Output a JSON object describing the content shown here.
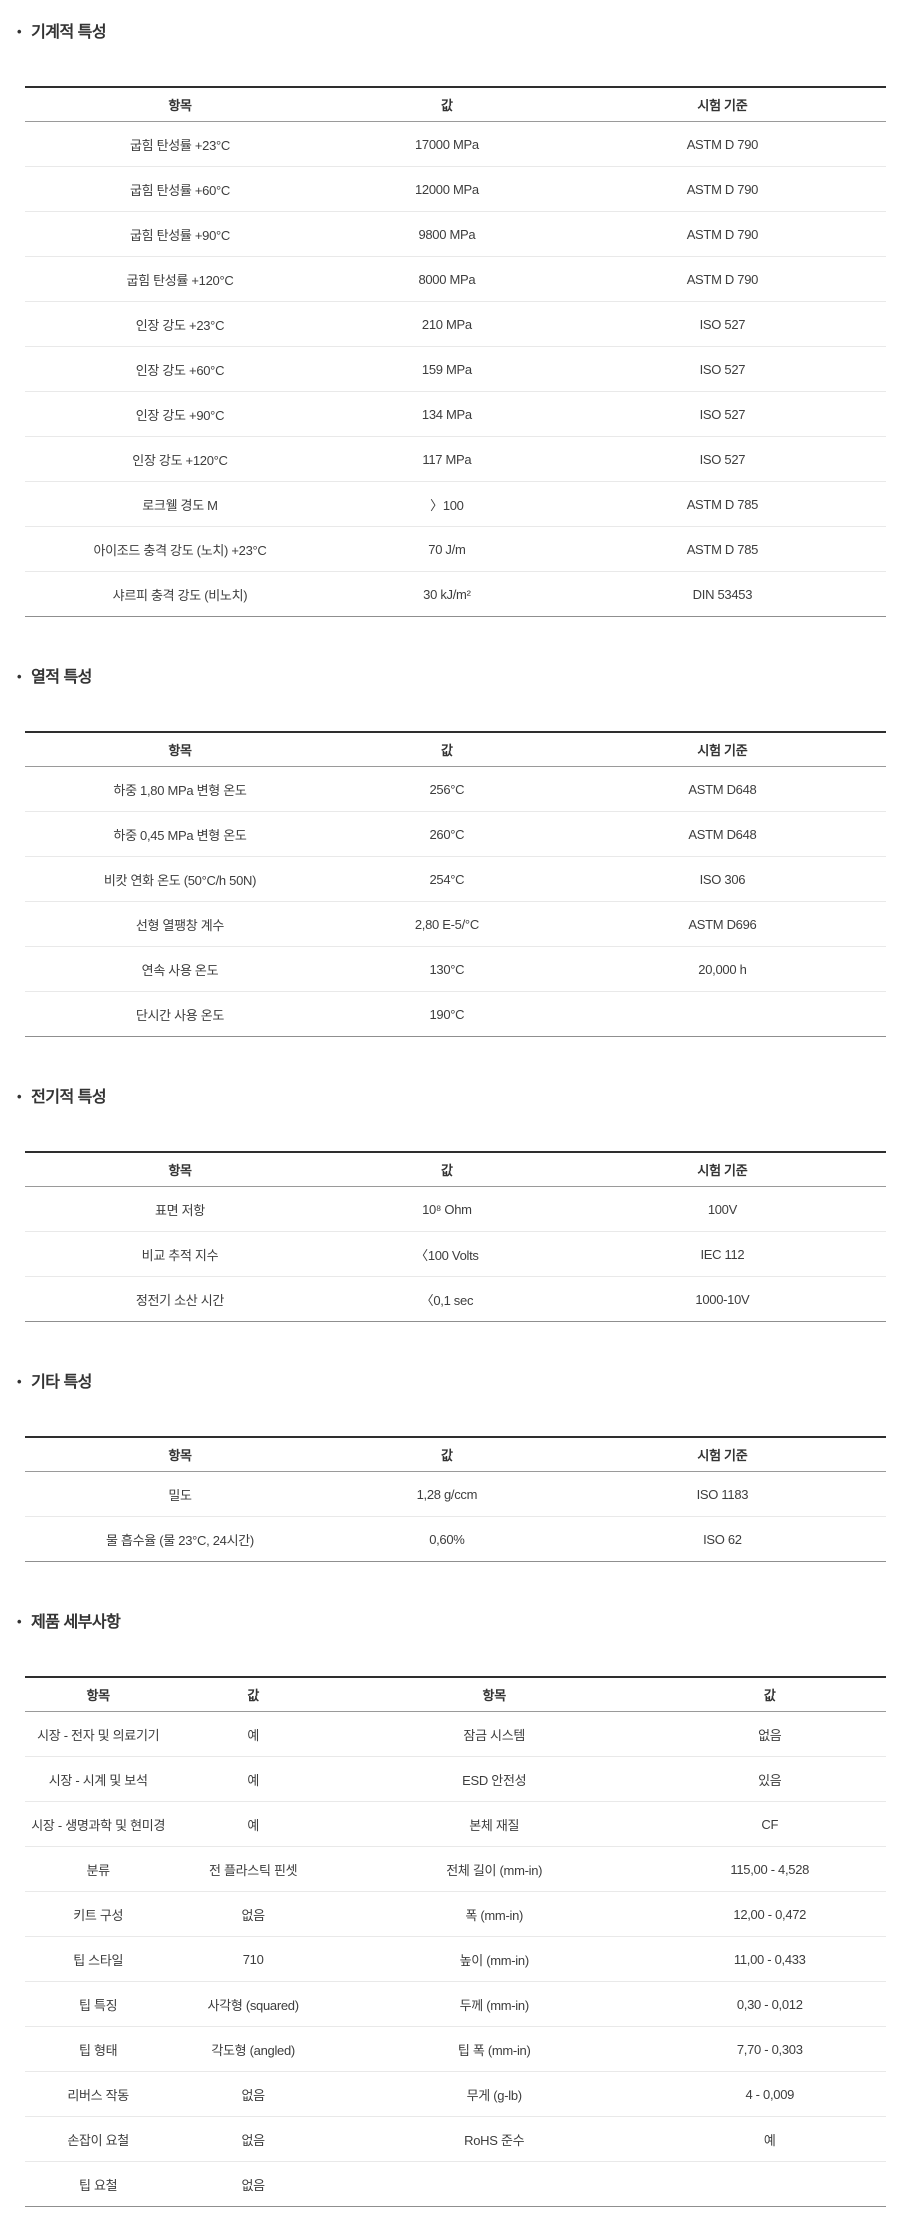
{
  "page": {
    "background": "#ffffff"
  },
  "bullet_icon": "•",
  "colors": {
    "table_top_border": "#2e2e2e",
    "table_bottom_border": "#8f8f8f",
    "header_divider": "#9a9a9a",
    "row_divider": "#e9e9e9",
    "title_text": "#333333",
    "cell_text": "#3d3d3d"
  },
  "sections": [
    {
      "title": "기계적 특성",
      "columns": [
        "항목",
        "값",
        "시험 기준"
      ],
      "rows": [
        [
          "굽힘 탄성률 +23°C",
          "17000 MPa",
          "ASTM D 790"
        ],
        [
          "굽힘 탄성률 +60°C",
          "12000 MPa",
          "ASTM D 790"
        ],
        [
          "굽힘 탄성률 +90°C",
          "9800 MPa",
          "ASTM D 790"
        ],
        [
          "굽힘 탄성률 +120°C",
          "8000 MPa",
          "ASTM D 790"
        ],
        [
          "인장 강도 +23°C",
          "210 MPa",
          "ISO 527"
        ],
        [
          "인장 강도 +60°C",
          "159 MPa",
          "ISO 527"
        ],
        [
          "인장 강도 +90°C",
          "134 MPa",
          "ISO 527"
        ],
        [
          "인장 강도 +120°C",
          "117 MPa",
          "ISO 527"
        ],
        [
          "로크웰 경도 M",
          "〉100",
          "ASTM D 785"
        ],
        [
          "아이조드 충격 강도 (노치) +23°C",
          "70 J/m",
          "ASTM D 785"
        ],
        [
          "샤르피 충격 강도 (비노치)",
          "30 kJ/m²",
          "DIN 53453"
        ]
      ]
    },
    {
      "title": "열적 특성",
      "columns": [
        "항목",
        "값",
        "시험 기준"
      ],
      "rows": [
        [
          "하중 1,80 MPa 변형 온도",
          "256°C",
          "ASTM D648"
        ],
        [
          "하중 0,45 MPa 변형 온도",
          "260°C",
          "ASTM D648"
        ],
        [
          "비캇 연화 온도 (50°C/h 50N)",
          "254°C",
          "ISO 306"
        ],
        [
          "선형 열팽창 계수",
          "2,80 E-5/°C",
          "ASTM D696"
        ],
        [
          "연속 사용 온도",
          "130°C",
          "20,000 h"
        ],
        [
          "단시간 사용 온도",
          "190°C",
          ""
        ]
      ]
    },
    {
      "title": "전기적 특성",
      "columns": [
        "항목",
        "값",
        "시험 기준"
      ],
      "rows": [
        [
          "표면 저항",
          "10⁸ Ohm",
          "100V"
        ],
        [
          "비교 추적 지수",
          "〈100 Volts",
          "IEC 112"
        ],
        [
          "정전기 소산 시간",
          "〈0,1 sec",
          "1000-10V"
        ]
      ]
    },
    {
      "title": "기타 특성",
      "columns": [
        "항목",
        "값",
        "시험 기준"
      ],
      "rows": [
        [
          "밀도",
          "1,28 g/ccm",
          "ISO 1183"
        ],
        [
          "물 흡수율 (물 23°C, 24시간)",
          "0,60%",
          "ISO 62"
        ]
      ]
    },
    {
      "title": "제품 세부사항",
      "columns": [
        "항목",
        "값",
        "항목",
        "값"
      ],
      "rows": [
        [
          "시장 - 전자 및 의료기기",
          "예",
          "잠금 시스템",
          "없음"
        ],
        [
          "시장 - 시계 및 보석",
          "예",
          "ESD 안전성",
          "있음"
        ],
        [
          "시장 - 생명과학 및 현미경",
          "예",
          "본체 재질",
          "CF"
        ],
        [
          "분류",
          "전 플라스틱 핀셋",
          "전체 길이 (mm-in)",
          "115,00 - 4,528"
        ],
        [
          "키트 구성",
          "없음",
          "폭 (mm-in)",
          "12,00 - 0,472"
        ],
        [
          "팁 스타일",
          "710",
          "높이 (mm-in)",
          "11,00 - 0,433"
        ],
        [
          "팁 특징",
          "사각형 (squared)",
          "두께 (mm-in)",
          "0,30 - 0,012"
        ],
        [
          "팁 형태",
          "각도형 (angled)",
          "팁 폭 (mm-in)",
          "7,70 - 0,303"
        ],
        [
          "리버스 작동",
          "없음",
          "무게 (g-lb)",
          "4 - 0,009"
        ],
        [
          "손잡이 요철",
          "없음",
          "RoHS 준수",
          "예"
        ],
        [
          "팁 요철",
          "없음",
          "",
          ""
        ]
      ]
    }
  ]
}
